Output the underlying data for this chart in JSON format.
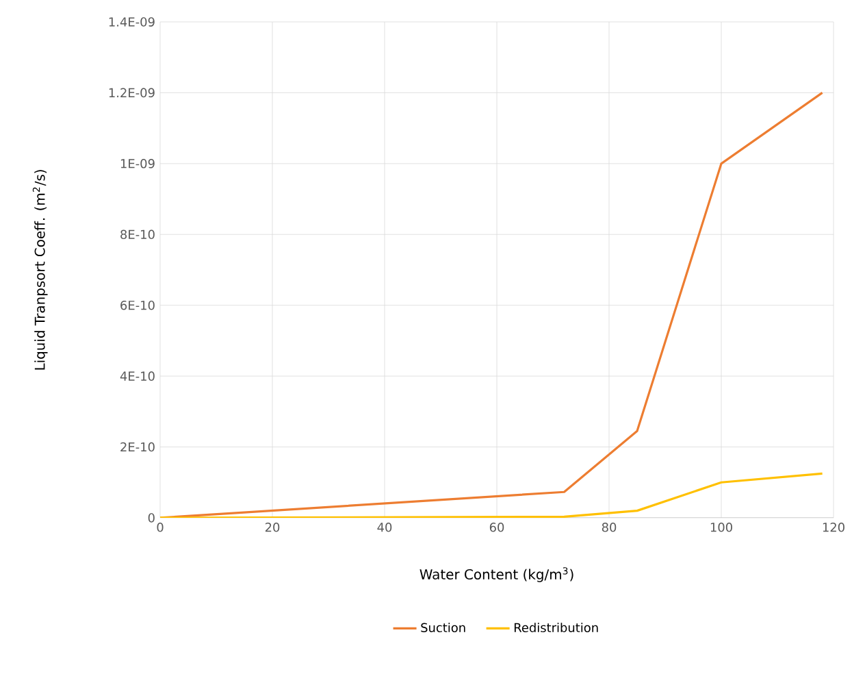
{
  "chart_data": {
    "type": "line",
    "xlabel": "Water Content (kg/m$^{3}$)",
    "ylabel": "Liquid Tranpsort Coeff. (m$^{2}$/s)",
    "series": [
      {
        "name": "Suction",
        "color": "#ed7d31",
        "x": [
          0,
          72,
          85,
          100,
          118
        ],
        "values": [
          0,
          7.3e-11,
          2.45e-10,
          1e-09,
          1.2e-09
        ]
      },
      {
        "name": "Redistribution",
        "color": "#ffc000",
        "x": [
          0,
          72,
          85,
          100,
          118
        ],
        "values": [
          0,
          3e-12,
          2e-11,
          1e-10,
          1.25e-10
        ]
      }
    ],
    "xlim": [
      0,
      120
    ],
    "xticks": [
      0,
      20,
      40,
      60,
      80,
      100,
      120
    ],
    "ylim": [
      0,
      1.4e-09
    ],
    "yticks": [
      0,
      {
        "value": 2e-10,
        "label": "2E-10"
      },
      {
        "value": 4e-10,
        "label": "4E-10"
      },
      {
        "value": 6e-10,
        "label": "6E-10"
      },
      {
        "value": 8e-10,
        "label": "8E-10"
      },
      {
        "value": 1e-09,
        "label": "1E-09"
      },
      {
        "value": 1.2e-09,
        "label": "1.2E-09"
      },
      {
        "value": 1.4e-09,
        "label": "1.4E-09"
      }
    ],
    "grid": true,
    "legend": "bottom",
    "marker": "none",
    "line_style": "solid"
  }
}
